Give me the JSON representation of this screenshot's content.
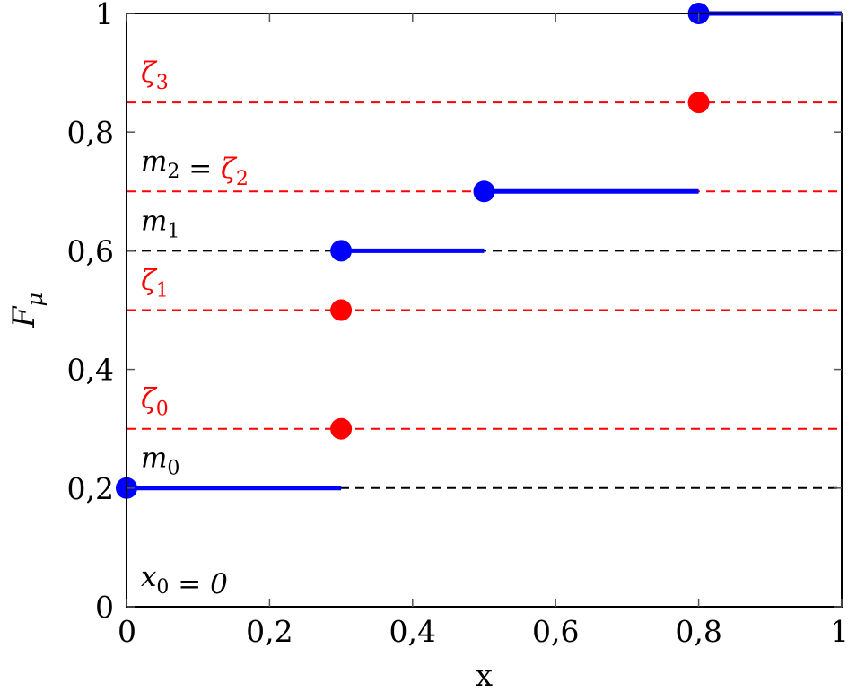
{
  "chart_data": {
    "type": "line",
    "title": "",
    "xlabel": "x",
    "ylabel": "F_μ",
    "xlim": [
      0,
      1
    ],
    "ylim": [
      0,
      1
    ],
    "xticks": [
      0,
      0.2,
      0.4,
      0.6,
      0.8,
      1
    ],
    "xtick_labels": [
      "0",
      "0,2",
      "0,4",
      "0,6",
      "0,8",
      "1"
    ],
    "yticks": [
      0,
      0.2,
      0.4,
      0.6,
      0.8,
      1
    ],
    "ytick_labels": [
      "0",
      "0,2",
      "0,4",
      "0,6",
      "0,8",
      "1"
    ],
    "grid": false,
    "series": [
      {
        "kind": "step-function",
        "color": "#0000ff",
        "segments": [
          {
            "x": [
              0,
              0.3
            ],
            "y": 0.2
          },
          {
            "x": [
              0.3,
              0.5
            ],
            "y": 0.6
          },
          {
            "x": [
              0.5,
              0.8
            ],
            "y": 0.7
          },
          {
            "x": [
              0.8,
              1.0
            ],
            "y": 1.0
          }
        ],
        "points": [
          {
            "x": 0,
            "y": 0.2
          },
          {
            "x": 0.3,
            "y": 0.6
          },
          {
            "x": 0.5,
            "y": 0.7
          },
          {
            "x": 0.8,
            "y": 1.0
          }
        ]
      },
      {
        "kind": "points",
        "color": "#ff0000",
        "points": [
          {
            "x": 0.3,
            "y": 0.3
          },
          {
            "x": 0.3,
            "y": 0.5
          },
          {
            "x": 0.8,
            "y": 0.85
          }
        ]
      }
    ],
    "hlines": [
      {
        "y": 0.2,
        "color": "#000000",
        "style": "dashed"
      },
      {
        "y": 0.3,
        "color": "#ff0000",
        "style": "dashed"
      },
      {
        "y": 0.5,
        "color": "#ff0000",
        "style": "dashed"
      },
      {
        "y": 0.6,
        "color": "#000000",
        "style": "dashed"
      },
      {
        "y": 0.7,
        "color": "#ff0000",
        "style": "dashed"
      },
      {
        "y": 0.85,
        "color": "#ff0000",
        "style": "dashed"
      }
    ],
    "annotations": [
      {
        "x": 0.02,
        "y": 0.035,
        "parts": [
          {
            "t": "x",
            "c": "#000000"
          },
          {
            "t": "0",
            "c": "#000000",
            "sub": true
          },
          {
            "t": " = 0",
            "c": "#000000"
          }
        ]
      },
      {
        "x": 0.02,
        "y": 0.235,
        "parts": [
          {
            "t": "m",
            "c": "#000000"
          },
          {
            "t": "0",
            "c": "#000000",
            "sub": true
          }
        ]
      },
      {
        "x": 0.02,
        "y": 0.335,
        "parts": [
          {
            "t": "ζ",
            "c": "#ff0000"
          },
          {
            "t": "0",
            "c": "#ff0000",
            "sub": true
          }
        ]
      },
      {
        "x": 0.02,
        "y": 0.535,
        "parts": [
          {
            "t": "ζ",
            "c": "#ff0000"
          },
          {
            "t": "1",
            "c": "#ff0000",
            "sub": true
          }
        ]
      },
      {
        "x": 0.02,
        "y": 0.635,
        "parts": [
          {
            "t": "m",
            "c": "#000000"
          },
          {
            "t": "1",
            "c": "#000000",
            "sub": true
          }
        ]
      },
      {
        "x": 0.02,
        "y": 0.735,
        "parts": [
          {
            "t": "m",
            "c": "#000000"
          },
          {
            "t": "2",
            "c": "#000000",
            "sub": true
          },
          {
            "t": " = ",
            "c": "#000000"
          },
          {
            "t": "ζ",
            "c": "#ff0000"
          },
          {
            "t": "2",
            "c": "#ff0000",
            "sub": true
          }
        ]
      },
      {
        "x": 0.02,
        "y": 0.885,
        "parts": [
          {
            "t": "ζ",
            "c": "#ff0000"
          },
          {
            "t": "3",
            "c": "#ff0000",
            "sub": true
          }
        ]
      }
    ]
  }
}
